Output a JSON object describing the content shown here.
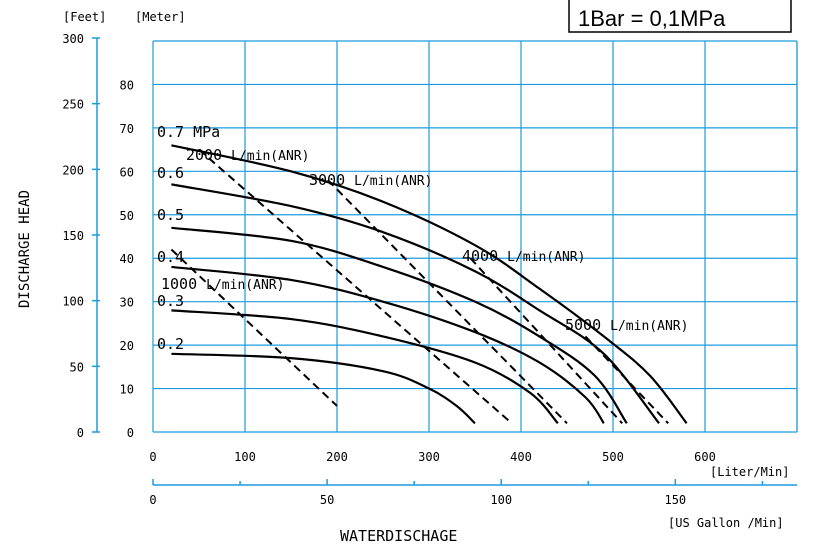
{
  "chart_data": {
    "type": "line",
    "ylabel": "DISCHARGE HEAD",
    "xlabel": "WATERDISCHAGE",
    "y_units_left": "[Feet]",
    "y_units_right": "[Meter]",
    "x_units_main": "[Liter/Min]",
    "x_units_secondary": "[US Gallon /Min]",
    "box_text": "1Bar = 0,1MPa",
    "feet_ticks": [
      "0",
      "50",
      "100",
      "150",
      "200",
      "250",
      "300"
    ],
    "meter_ticks": [
      "0",
      "10",
      "20",
      "30",
      "40",
      "50",
      "60",
      "70",
      "80"
    ],
    "lpm_ticks": [
      "0",
      "100",
      "200",
      "300",
      "400",
      "500",
      "600"
    ],
    "gal_ticks": [
      "0",
      "50",
      "100",
      "150"
    ],
    "xlim": [
      0,
      700
    ],
    "ylim": [
      0,
      90
    ],
    "grid": true,
    "pressure_series": [
      {
        "name": "0.7 MPa",
        "points": [
          [
            20,
            66
          ],
          [
            150,
            60
          ],
          [
            250,
            53
          ],
          [
            350,
            43
          ],
          [
            420,
            33
          ],
          [
            490,
            22
          ],
          [
            540,
            13
          ],
          [
            580,
            2
          ]
        ]
      },
      {
        "name": "0.6",
        "points": [
          [
            20,
            57
          ],
          [
            150,
            52
          ],
          [
            250,
            46
          ],
          [
            350,
            37
          ],
          [
            420,
            28
          ],
          [
            490,
            18
          ],
          [
            550,
            2
          ]
        ]
      },
      {
        "name": "0.5",
        "points": [
          [
            20,
            47
          ],
          [
            150,
            44
          ],
          [
            250,
            38
          ],
          [
            350,
            30
          ],
          [
            420,
            22
          ],
          [
            480,
            13
          ],
          [
            515,
            2
          ]
        ]
      },
      {
        "name": "0.4",
        "points": [
          [
            20,
            38
          ],
          [
            150,
            35
          ],
          [
            250,
            30
          ],
          [
            350,
            23
          ],
          [
            420,
            16
          ],
          [
            470,
            8
          ],
          [
            490,
            2
          ]
        ]
      },
      {
        "name": "0.3",
        "points": [
          [
            20,
            28
          ],
          [
            150,
            26
          ],
          [
            250,
            22
          ],
          [
            350,
            16
          ],
          [
            410,
            9
          ],
          [
            440,
            2
          ]
        ]
      },
      {
        "name": "0.2",
        "points": [
          [
            20,
            18
          ],
          [
            150,
            17
          ],
          [
            250,
            14
          ],
          [
            300,
            10
          ],
          [
            330,
            6
          ],
          [
            350,
            2
          ]
        ]
      }
    ],
    "air_series": [
      {
        "name": "1000 L/min(ANR)",
        "points": [
          [
            20,
            42
          ],
          [
            200,
            6
          ]
        ]
      },
      {
        "name": "2000 L/min(ANR)",
        "points": [
          [
            50,
            65
          ],
          [
            390,
            2
          ]
        ]
      },
      {
        "name": "3000 L/min(ANR)",
        "points": [
          [
            190,
            58
          ],
          [
            450,
            2
          ]
        ]
      },
      {
        "name": "4000 L/min(ANR)",
        "points": [
          [
            345,
            40
          ],
          [
            510,
            2
          ]
        ]
      },
      {
        "name": "5000 L/min(ANR)",
        "points": [
          [
            470,
            22
          ],
          [
            560,
            2
          ]
        ]
      }
    ]
  }
}
